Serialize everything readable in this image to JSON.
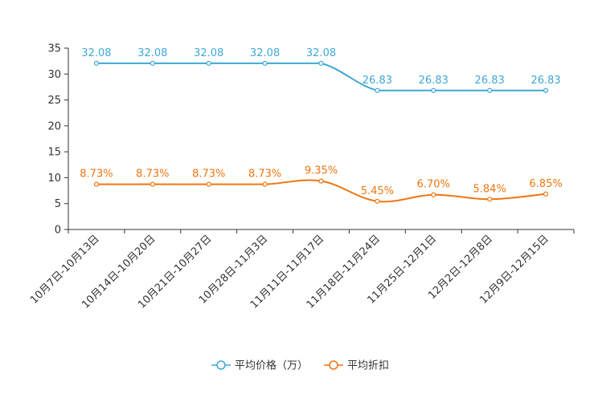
{
  "chart_data": {
    "type": "line",
    "title": "",
    "xlabel": "",
    "ylabel": "",
    "categories": [
      "10月7日-10月13日",
      "10月14日-10月20日",
      "10月21日-10月27日",
      "10月28日-11月3日",
      "11月11日-11月17日",
      "11月18日-11月24日",
      "11月25日-12月1日",
      "12月2日-12月8日",
      "12月9日-12月15日"
    ],
    "ylim": [
      0,
      35
    ],
    "yticks": [
      0,
      5,
      10,
      15,
      20,
      25,
      30,
      35
    ],
    "grid": false,
    "legend_position": "bottom-center",
    "series": [
      {
        "name": "平均价格（万）",
        "color": "#3fa7d4",
        "values": [
          32.08,
          32.08,
          32.08,
          32.08,
          32.08,
          26.83,
          26.83,
          26.83,
          26.83
        ],
        "labels": [
          "32.08",
          "32.08",
          "32.08",
          "32.08",
          "32.08",
          "26.83",
          "26.83",
          "26.83",
          "26.83"
        ]
      },
      {
        "name": "平均折扣",
        "color": "#f07511",
        "values": [
          8.73,
          8.73,
          8.73,
          8.73,
          9.35,
          5.45,
          6.7,
          5.84,
          6.85
        ],
        "labels": [
          "8.73%",
          "8.73%",
          "8.73%",
          "8.73%",
          "9.35%",
          "5.45%",
          "6.70%",
          "5.84%",
          "6.85%"
        ]
      }
    ]
  }
}
